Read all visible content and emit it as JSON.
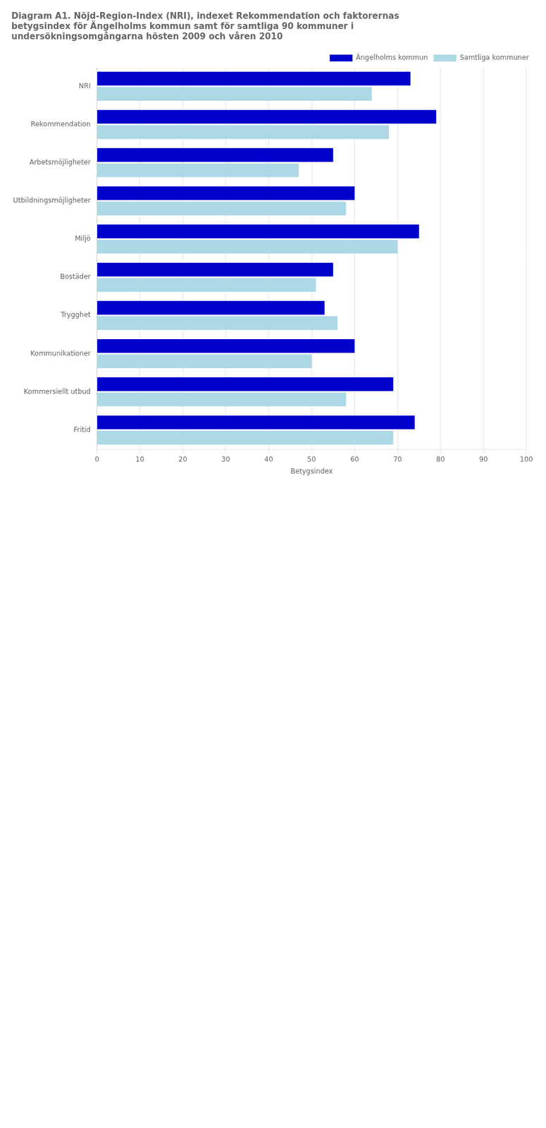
{
  "chart_data": {
    "type": "bar",
    "orientation": "horizontal",
    "title": [
      "Diagram A1. Nöjd-Region-Index (NRI), indexet Rekommendation och faktorernas",
      "betygsindex för Ängelholms kommun samt för samtliga 90 kommuner i",
      "undersökningsomgångarna hösten 2009 och våren 2010"
    ],
    "categories": [
      "NRI",
      "Rekommendation",
      "Arbetsmöjligheter",
      "Utbildningsmöjligheter",
      "Miljö",
      "Bostäder",
      "Trygghet",
      "Kommunikationer",
      "Kommersiellt utbud",
      "Fritid"
    ],
    "series": [
      {
        "name": "Ängelholms kommun",
        "color": "#0000CC",
        "values": [
          73,
          79,
          55,
          60,
          75,
          55,
          53,
          60,
          69,
          74
        ]
      },
      {
        "name": "Samtliga kommuner",
        "color": "#ADD8E6",
        "values": [
          64,
          68,
          47,
          58,
          70,
          51,
          56,
          50,
          58,
          69
        ]
      }
    ],
    "xlabel": "Betygsindex",
    "xlim": [
      0,
      100
    ],
    "xticks": [
      0,
      10,
      20,
      30,
      40,
      50,
      60,
      70,
      80,
      90,
      100
    ],
    "grid": true,
    "legend": "upper right"
  }
}
